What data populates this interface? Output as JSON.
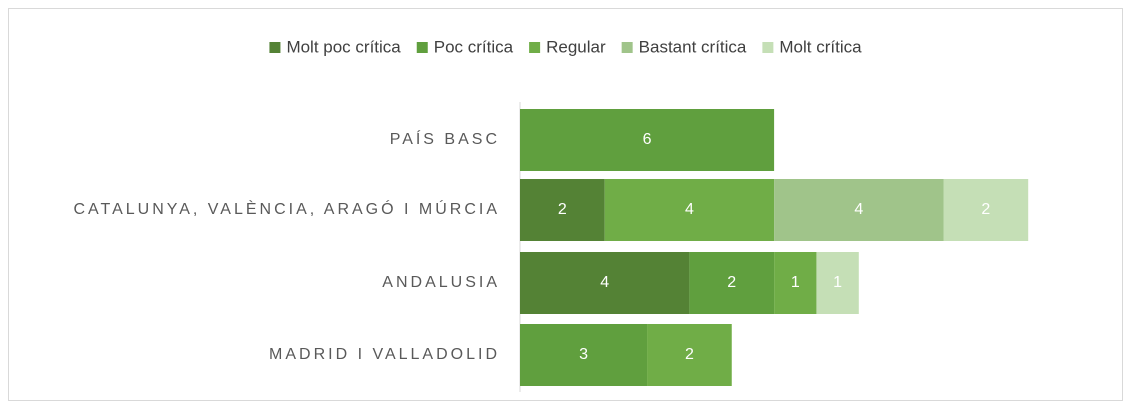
{
  "chart_data": {
    "type": "stacked-bar-horizontal",
    "categories": [
      "PAÍS BASC",
      "CATALUNYA, VALÈNCIA, ARAGÓ I MÚRCIA",
      "ANDALUSIA",
      "MADRID I VALLADOLID"
    ],
    "series": [
      {
        "name": "Molt poc crítica",
        "color": "#548235",
        "values": [
          null,
          2,
          4,
          null
        ]
      },
      {
        "name": "Poc crítica",
        "color": "#609f3e",
        "values": [
          6,
          null,
          2,
          3
        ]
      },
      {
        "name": "Regular",
        "color": "#70ad47",
        "values": [
          null,
          4,
          1,
          2
        ]
      },
      {
        "name": "Bastant crítica",
        "color": "#a0c48a",
        "values": [
          null,
          4,
          null,
          null
        ]
      },
      {
        "name": "Molt crítica",
        "color": "#c5dfb6",
        "values": [
          null,
          2,
          1,
          null
        ]
      }
    ],
    "legend": "top"
  }
}
